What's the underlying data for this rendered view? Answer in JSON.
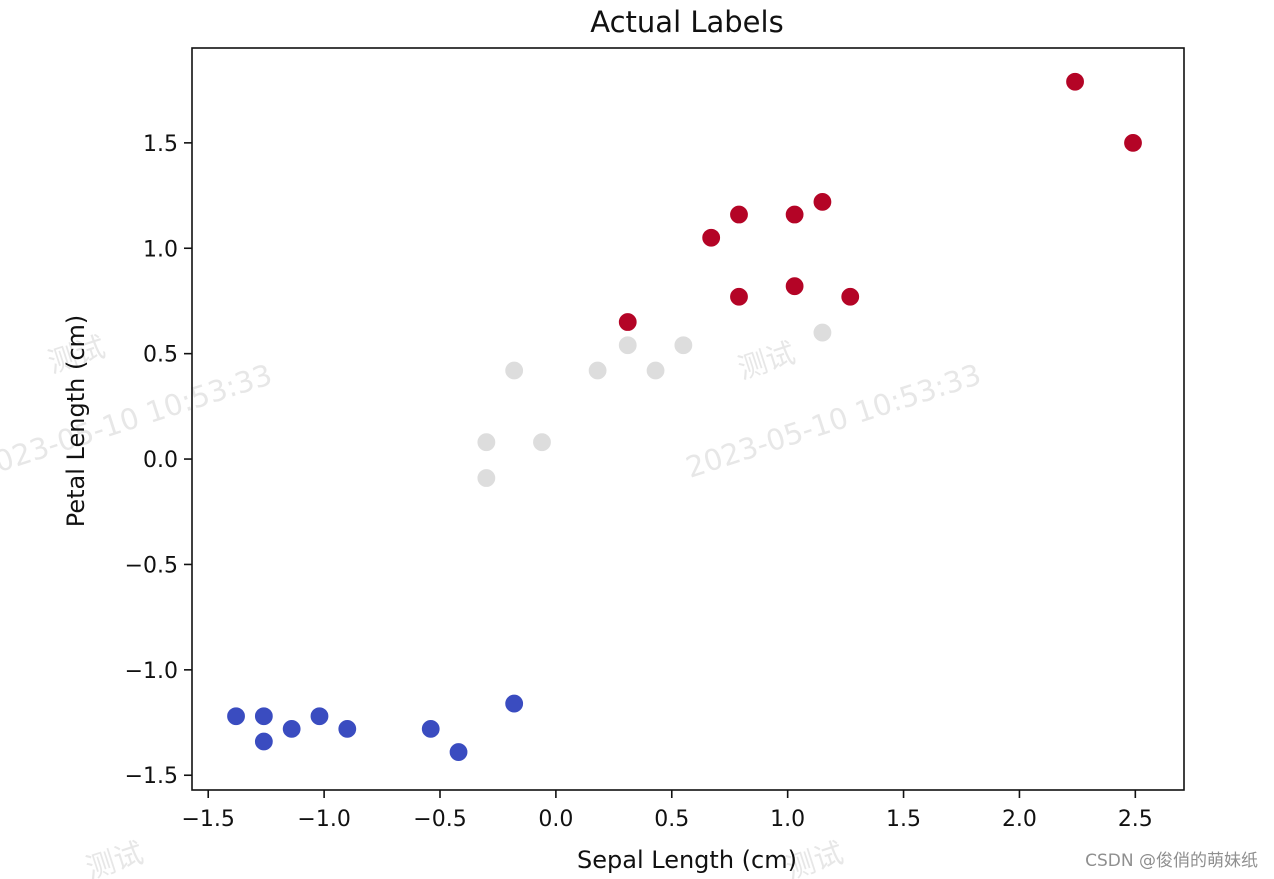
{
  "chart_data": {
    "type": "scatter",
    "title": "Actual Labels",
    "xlabel": "Sepal Length (cm)",
    "ylabel": "Petal Length (cm)",
    "xlim": [
      -1.57,
      2.71
    ],
    "ylim": [
      -1.57,
      1.95
    ],
    "xticks": [
      -1.5,
      -1.0,
      -0.5,
      0.0,
      0.5,
      1.0,
      1.5,
      2.0,
      2.5
    ],
    "xtick_labels": [
      "−1.5",
      "−1.0",
      "−0.5",
      "0.0",
      "0.5",
      "1.0",
      "1.5",
      "2.0",
      "2.5"
    ],
    "yticks": [
      -1.5,
      -1.0,
      -0.5,
      0.0,
      0.5,
      1.0,
      1.5
    ],
    "ytick_labels": [
      "−1.5",
      "−1.0",
      "−0.5",
      "0.0",
      "0.5",
      "1.0",
      "1.5"
    ],
    "grid": false,
    "series": [
      {
        "color": "#3a4cc0",
        "points": [
          {
            "x": -1.38,
            "y": -1.22
          },
          {
            "x": -1.26,
            "y": -1.22
          },
          {
            "x": -1.26,
            "y": -1.34
          },
          {
            "x": -1.14,
            "y": -1.28
          },
          {
            "x": -1.02,
            "y": -1.22
          },
          {
            "x": -0.9,
            "y": -1.28
          },
          {
            "x": -0.54,
            "y": -1.28
          },
          {
            "x": -0.42,
            "y": -1.39
          },
          {
            "x": -0.18,
            "y": -1.16
          }
        ]
      },
      {
        "color": "#dddddd",
        "points": [
          {
            "x": -0.3,
            "y": 0.08
          },
          {
            "x": -0.3,
            "y": -0.09
          },
          {
            "x": -0.18,
            "y": 0.42
          },
          {
            "x": -0.06,
            "y": 0.08
          },
          {
            "x": 0.18,
            "y": 0.42
          },
          {
            "x": 0.31,
            "y": 0.54
          },
          {
            "x": 0.43,
            "y": 0.42
          },
          {
            "x": 0.55,
            "y": 0.54
          },
          {
            "x": 1.15,
            "y": 0.6
          }
        ]
      },
      {
        "color": "#b40426",
        "points": [
          {
            "x": 0.31,
            "y": 0.65
          },
          {
            "x": 0.67,
            "y": 1.05
          },
          {
            "x": 0.79,
            "y": 1.16
          },
          {
            "x": 0.79,
            "y": 0.77
          },
          {
            "x": 1.03,
            "y": 1.16
          },
          {
            "x": 1.03,
            "y": 0.82
          },
          {
            "x": 1.15,
            "y": 1.22
          },
          {
            "x": 1.27,
            "y": 0.77
          },
          {
            "x": 2.24,
            "y": 1.79
          },
          {
            "x": 2.49,
            "y": 1.5
          }
        ]
      }
    ]
  },
  "watermark": {
    "label": "测试",
    "timestamp": "2023-05-10 10:53:33"
  },
  "credit": "CSDN @俊俏的萌妹纸"
}
